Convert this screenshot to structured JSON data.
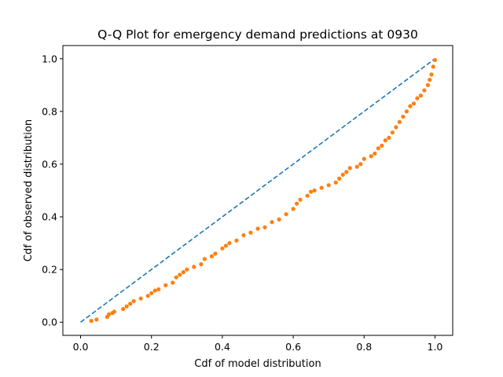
{
  "chart_data": {
    "type": "scatter",
    "title": "Q-Q Plot for emergency demand predictions at 0930",
    "xlabel": "Cdf of model distribution",
    "ylabel": "Cdf of observed distribution",
    "xlim": [
      -0.05,
      1.05
    ],
    "ylim": [
      -0.05,
      1.05
    ],
    "xticks": [
      "0.0",
      "0.2",
      "0.4",
      "0.6",
      "0.8",
      "1.0"
    ],
    "yticks": [
      "0.0",
      "0.2",
      "0.4",
      "0.6",
      "0.8",
      "1.0"
    ],
    "grid": false,
    "legend": "none",
    "series": [
      {
        "kind": "reference-line",
        "style": "dashed",
        "color": "#1f77b4",
        "x": [
          0.0,
          1.0
        ],
        "y": [
          0.0,
          1.0
        ]
      },
      {
        "kind": "points",
        "color": "#ff7f0e",
        "x": [
          0.03,
          0.045,
          0.075,
          0.08,
          0.09,
          0.095,
          0.12,
          0.13,
          0.14,
          0.15,
          0.17,
          0.19,
          0.2,
          0.21,
          0.22,
          0.24,
          0.26,
          0.27,
          0.28,
          0.29,
          0.3,
          0.32,
          0.34,
          0.35,
          0.37,
          0.38,
          0.4,
          0.41,
          0.42,
          0.44,
          0.46,
          0.48,
          0.5,
          0.52,
          0.54,
          0.56,
          0.58,
          0.6,
          0.61,
          0.62,
          0.64,
          0.65,
          0.66,
          0.68,
          0.7,
          0.72,
          0.73,
          0.74,
          0.75,
          0.76,
          0.78,
          0.79,
          0.8,
          0.82,
          0.83,
          0.84,
          0.85,
          0.86,
          0.87,
          0.88,
          0.89,
          0.9,
          0.91,
          0.92,
          0.93,
          0.94,
          0.95,
          0.96,
          0.97,
          0.98,
          0.985,
          0.99,
          0.995,
          1.0
        ],
        "y": [
          0.005,
          0.01,
          0.02,
          0.03,
          0.035,
          0.04,
          0.05,
          0.06,
          0.07,
          0.08,
          0.09,
          0.1,
          0.11,
          0.12,
          0.125,
          0.14,
          0.15,
          0.17,
          0.18,
          0.19,
          0.2,
          0.21,
          0.22,
          0.24,
          0.25,
          0.26,
          0.28,
          0.29,
          0.3,
          0.31,
          0.33,
          0.34,
          0.355,
          0.36,
          0.38,
          0.39,
          0.41,
          0.43,
          0.45,
          0.465,
          0.48,
          0.495,
          0.5,
          0.51,
          0.52,
          0.53,
          0.545,
          0.56,
          0.57,
          0.585,
          0.59,
          0.6,
          0.62,
          0.63,
          0.64,
          0.66,
          0.67,
          0.69,
          0.7,
          0.72,
          0.74,
          0.76,
          0.78,
          0.8,
          0.82,
          0.83,
          0.85,
          0.86,
          0.88,
          0.9,
          0.92,
          0.94,
          0.97,
          0.995
        ]
      }
    ]
  }
}
